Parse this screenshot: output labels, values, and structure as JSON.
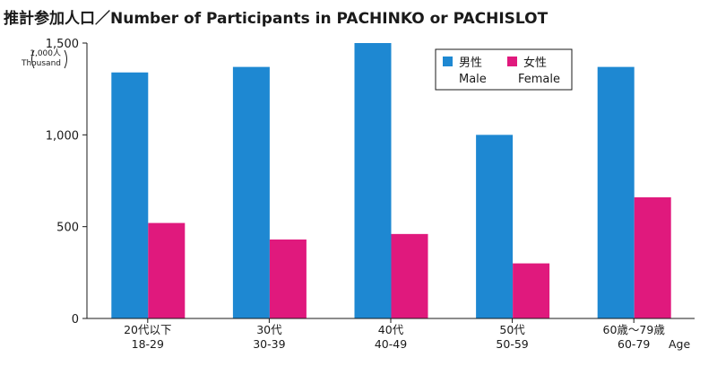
{
  "chart_data": {
    "type": "bar",
    "title": "推計参加人口／Number of Participants in PACHINKO or PACHISLOT",
    "unit_label": [
      "1,000人",
      "Thousand"
    ],
    "xlabel": "Age",
    "ylabel": "",
    "ylim": [
      0,
      1500
    ],
    "yticks": [
      0,
      500,
      1000,
      1500
    ],
    "ytick_labels": [
      "0",
      "500",
      "1,000",
      "1,500"
    ],
    "grid": false,
    "legend_position": "top-right",
    "categories": [
      [
        "20代以下",
        "18-29"
      ],
      [
        "30代",
        "30-39"
      ],
      [
        "40代",
        "40-49"
      ],
      [
        "50代",
        "50-59"
      ],
      [
        "60歳～79歳",
        "60-79"
      ]
    ],
    "series": [
      {
        "name": "男性 Male",
        "legend_lines": [
          "男性",
          "Male"
        ],
        "color": "#1e88d2",
        "values": [
          1340,
          1370,
          1500,
          1000,
          1370
        ]
      },
      {
        "name": "女性 Female",
        "legend_lines": [
          "女性",
          "Female"
        ],
        "color": "#e0197d",
        "values": [
          520,
          430,
          460,
          300,
          660
        ]
      }
    ]
  }
}
